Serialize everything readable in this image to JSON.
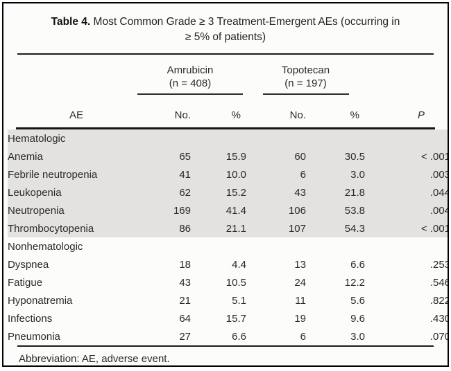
{
  "table": {
    "title": {
      "label": "Table 4.",
      "line1": "Most Common Grade ≥ 3 Treatment-Emergent AEs (occurring in",
      "line2": "≥ 5% of patients)"
    },
    "groups": [
      {
        "name": "Amrubicin",
        "n": "(n = 408)"
      },
      {
        "name": "Topotecan",
        "n": "(n = 197)"
      }
    ],
    "headers": {
      "ae": "AE",
      "no1": "No.",
      "pct1": "%",
      "no2": "No.",
      "pct2": "%",
      "p": "P"
    },
    "sections": [
      {
        "label": "Hematologic",
        "shaded": true,
        "rows": [
          {
            "ae": "Anemia",
            "amrubicin_no": "65",
            "amrubicin_pct": "15.9",
            "topotecan_no": "60",
            "topotecan_pct": "30.5",
            "p": "< .001"
          },
          {
            "ae": "Febrile neutropenia",
            "amrubicin_no": "41",
            "amrubicin_pct": "10.0",
            "topotecan_no": "6",
            "topotecan_pct": "3.0",
            "p": ".003"
          },
          {
            "ae": "Leukopenia",
            "amrubicin_no": "62",
            "amrubicin_pct": "15.2",
            "topotecan_no": "43",
            "topotecan_pct": "21.8",
            "p": ".044"
          },
          {
            "ae": "Neutropenia",
            "amrubicin_no": "169",
            "amrubicin_pct": "41.4",
            "topotecan_no": "106",
            "topotecan_pct": "53.8",
            "p": ".004"
          },
          {
            "ae": "Thrombocytopenia",
            "amrubicin_no": "86",
            "amrubicin_pct": "21.1",
            "topotecan_no": "107",
            "topotecan_pct": "54.3",
            "p": "< .001"
          }
        ]
      },
      {
        "label": "Nonhematologic",
        "shaded": false,
        "rows": [
          {
            "ae": "Dyspnea",
            "amrubicin_no": "18",
            "amrubicin_pct": "4.4",
            "topotecan_no": "13",
            "topotecan_pct": "6.6",
            "p": ".253"
          },
          {
            "ae": "Fatigue",
            "amrubicin_no": "43",
            "amrubicin_pct": "10.5",
            "topotecan_no": "24",
            "topotecan_pct": "12.2",
            "p": ".546"
          },
          {
            "ae": "Hyponatremia",
            "amrubicin_no": "21",
            "amrubicin_pct": "5.1",
            "topotecan_no": "11",
            "topotecan_pct": "5.6",
            "p": ".822"
          },
          {
            "ae": "Infections",
            "amrubicin_no": "64",
            "amrubicin_pct": "15.7",
            "topotecan_no": "19",
            "topotecan_pct": "9.6",
            "p": ".430"
          },
          {
            "ae": "Pneumonia",
            "amrubicin_no": "27",
            "amrubicin_pct": "6.6",
            "topotecan_no": "6",
            "topotecan_pct": "3.0",
            "p": ".070"
          }
        ]
      }
    ],
    "footnote": "Abbreviation: AE, adverse event.",
    "colors": {
      "shaded_row": "#e3e2e0",
      "rule": "#1c1c1c",
      "text": "#262626"
    }
  }
}
